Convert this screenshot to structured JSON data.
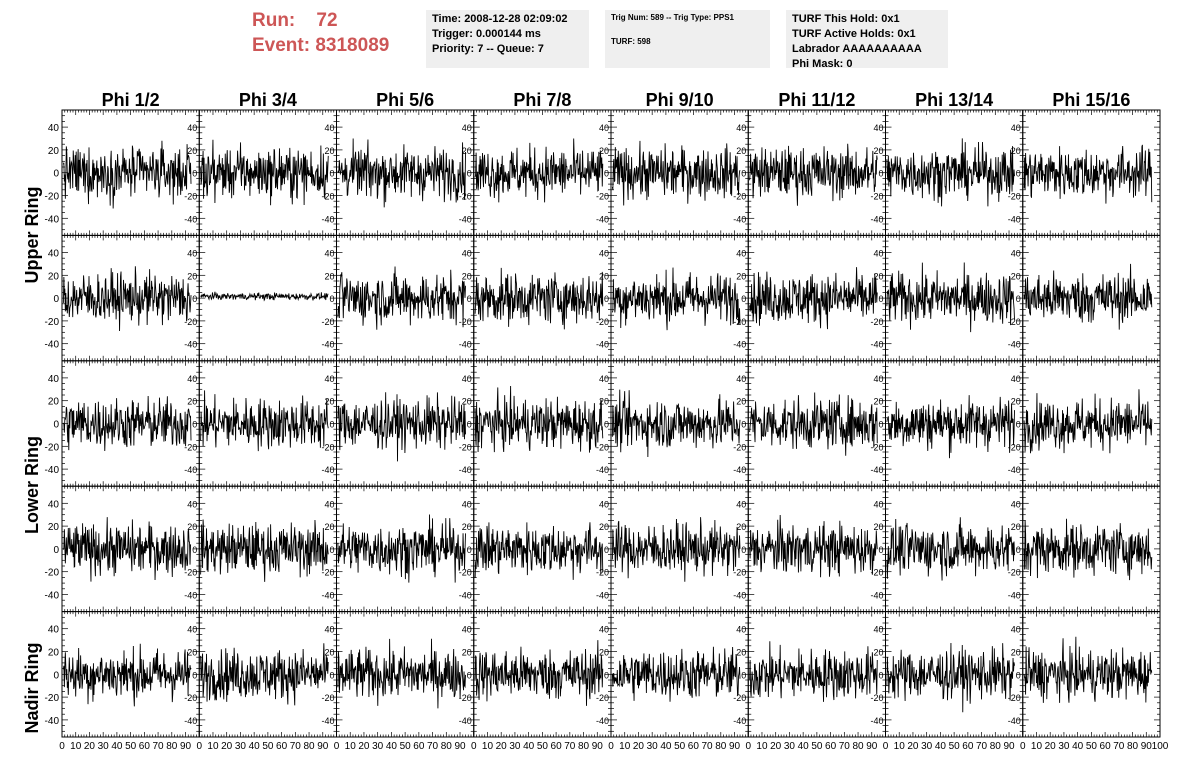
{
  "header": {
    "run_label": "Run:",
    "run_value": "72",
    "event_label": "Event:",
    "event_value": "8318089"
  },
  "info_time": {
    "time": "Time: 2008-12-28 02:09:02",
    "trigger": "Trigger: 0.000144 ms",
    "priority": "Priority: 7 -- Queue: 7"
  },
  "info_trig": {
    "trig": "Trig Num: 589 -- Trig Type: PPS1",
    "turf": "TURF: 598"
  },
  "info_turf": {
    "hold": "TURF This Hold: 0x1",
    "active": "TURF Active Holds: 0x1",
    "labrador": "Labrador AAAAAAAAAA",
    "phimask": "Phi Mask: 0"
  },
  "chart_data": {
    "type": "line",
    "columns": [
      "Phi 1/2",
      "Phi 3/4",
      "Phi 5/6",
      "Phi 7/8",
      "Phi 9/10",
      "Phi 11/12",
      "Phi 13/14",
      "Phi 15/16"
    ],
    "ring_labels": [
      "Upper Ring",
      "Lower Ring",
      "Nadir Ring"
    ],
    "rows": 5,
    "xlim": [
      0,
      100
    ],
    "ylim": [
      -55,
      55
    ],
    "x_ticks": [
      "0",
      "10",
      "20",
      "30",
      "40",
      "50",
      "60",
      "70",
      "80",
      "90",
      "100"
    ],
    "y_ticks": [
      "40",
      "20",
      "0",
      "-20",
      "-40"
    ],
    "samples_per_trace": 260,
    "typical_noise_amplitude": 11,
    "flat_trace": {
      "row": 1,
      "column": 1,
      "amplitude": 1.5
    },
    "line_color": "#000000"
  }
}
